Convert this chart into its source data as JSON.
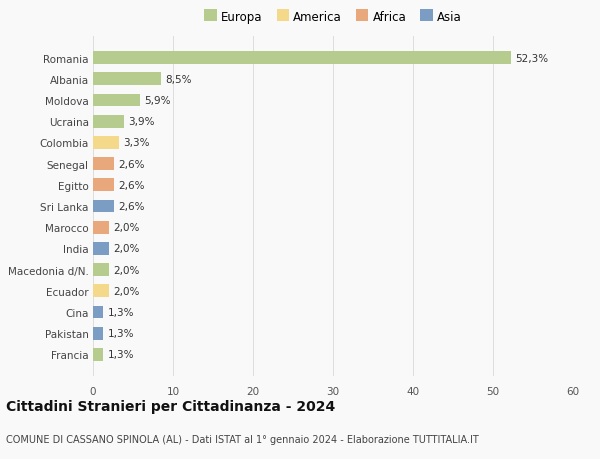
{
  "countries": [
    "Romania",
    "Albania",
    "Moldova",
    "Ucraina",
    "Colombia",
    "Senegal",
    "Egitto",
    "Sri Lanka",
    "Marocco",
    "India",
    "Macedonia d/N.",
    "Ecuador",
    "Cina",
    "Pakistan",
    "Francia"
  ],
  "values": [
    52.3,
    8.5,
    5.9,
    3.9,
    3.3,
    2.6,
    2.6,
    2.6,
    2.0,
    2.0,
    2.0,
    2.0,
    1.3,
    1.3,
    1.3
  ],
  "labels": [
    "52,3%",
    "8,5%",
    "5,9%",
    "3,9%",
    "3,3%",
    "2,6%",
    "2,6%",
    "2,6%",
    "2,0%",
    "2,0%",
    "2,0%",
    "2,0%",
    "1,3%",
    "1,3%",
    "1,3%"
  ],
  "continents": [
    "Europa",
    "Europa",
    "Europa",
    "Europa",
    "America",
    "Africa",
    "Africa",
    "Asia",
    "Africa",
    "Asia",
    "Europa",
    "America",
    "Asia",
    "Asia",
    "Europa"
  ],
  "continent_colors": {
    "Europa": "#b5cc8e",
    "America": "#f5d98b",
    "Africa": "#e8a87c",
    "Asia": "#7b9dc4"
  },
  "legend_order": [
    "Europa",
    "America",
    "Africa",
    "Asia"
  ],
  "xlim": [
    0,
    60
  ],
  "xticks": [
    0,
    10,
    20,
    30,
    40,
    50,
    60
  ],
  "title": "Cittadini Stranieri per Cittadinanza - 2024",
  "subtitle": "COMUNE DI CASSANO SPINOLA (AL) - Dati ISTAT al 1° gennaio 2024 - Elaborazione TUTTITALIA.IT",
  "background_color": "#f9f9f9",
  "bar_height": 0.6,
  "label_fontsize": 7.5,
  "title_fontsize": 10,
  "subtitle_fontsize": 7,
  "tick_fontsize": 7.5,
  "legend_fontsize": 8.5
}
